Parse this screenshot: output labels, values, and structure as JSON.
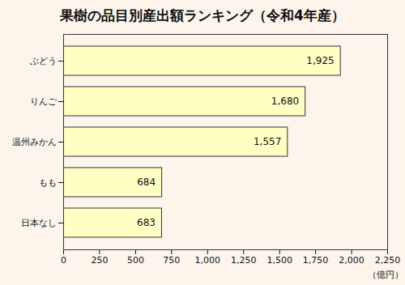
{
  "chart_data": {
    "type": "bar",
    "orientation": "horizontal",
    "title": "果樹の品目別産出額ランキング（令和4年産）",
    "x_label": "（億円）",
    "categories": [
      "ぶどう",
      "りんご",
      "温州みかん",
      "もも",
      "日本なし"
    ],
    "values": [
      1925,
      1680,
      1557,
      684,
      683
    ],
    "value_labels": [
      "1,925",
      "1,680",
      "1,557",
      "684",
      "683"
    ],
    "data_labels": true,
    "color": "#ffffc4",
    "xlim": [
      0,
      2250
    ],
    "xticks": [
      0,
      250,
      500,
      750,
      {
        "value": 1000,
        "label": "1,000"
      },
      {
        "value": 1250,
        "label": "1,250"
      },
      {
        "value": 1500,
        "label": "1,500"
      },
      {
        "value": 1750,
        "label": "1,750"
      },
      {
        "value": 2000,
        "label": "2,000"
      },
      {
        "value": 2250,
        "label": "2,250"
      }
    ],
    "grid": false
  }
}
